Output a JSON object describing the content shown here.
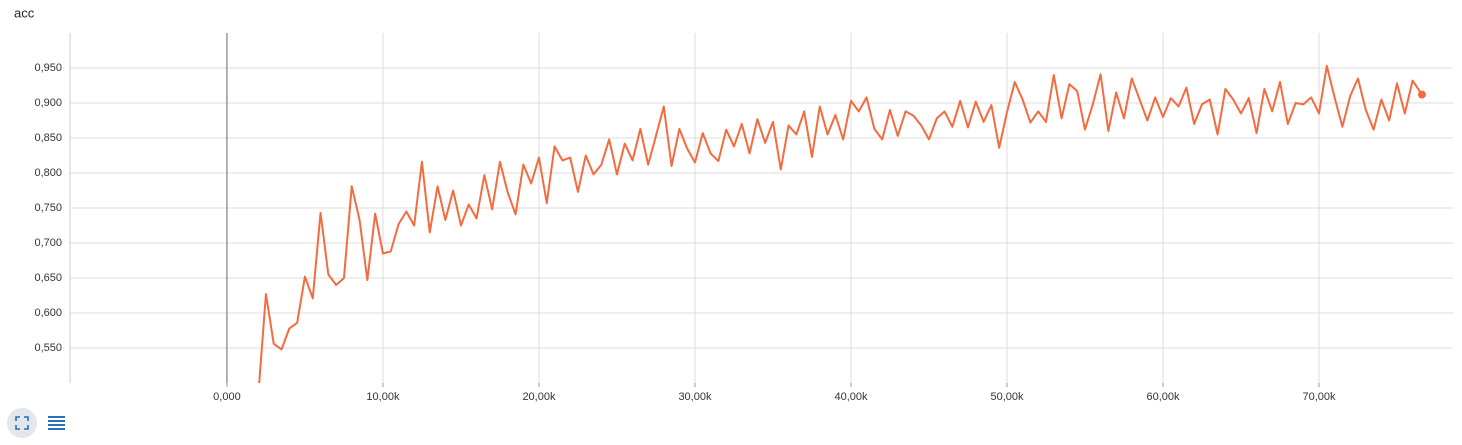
{
  "chart_data": {
    "type": "line",
    "title": "acc",
    "x": [
      2000,
      2500,
      3000,
      3500,
      4000,
      4500,
      5000,
      5500,
      6000,
      6500,
      7000,
      7500,
      8000,
      8500,
      9000,
      9500,
      10000,
      10500,
      11000,
      11500,
      12000,
      12500,
      13000,
      13500,
      14000,
      14500,
      15000,
      15500,
      16000,
      16500,
      17000,
      17500,
      18000,
      18500,
      19000,
      19500,
      20000,
      20500,
      21000,
      21500,
      22000,
      22500,
      23000,
      23500,
      24000,
      24500,
      25000,
      25500,
      26000,
      26500,
      27000,
      27500,
      28000,
      28500,
      29000,
      29500,
      30000,
      30500,
      31000,
      31500,
      32000,
      32500,
      33000,
      33500,
      34000,
      34500,
      35000,
      35500,
      36000,
      36500,
      37000,
      37500,
      38000,
      38500,
      39000,
      39500,
      40000,
      40500,
      41000,
      41500,
      42000,
      42500,
      43000,
      43500,
      44000,
      44500,
      45000,
      45500,
      46000,
      46500,
      47000,
      47500,
      48000,
      48500,
      49000,
      49500,
      50000,
      50500,
      51000,
      51500,
      52000,
      52500,
      53000,
      53500,
      54000,
      54500,
      55000,
      55500,
      56000,
      56500,
      57000,
      57500,
      58000,
      58500,
      59000,
      59500,
      60000,
      60500,
      61000,
      61500,
      62000,
      62500,
      63000,
      63500,
      64000,
      64500,
      65000,
      65500,
      66000,
      66500,
      67000,
      67500,
      68000,
      68500,
      69000,
      69500,
      70000,
      70500,
      71000,
      71500,
      72000,
      72500,
      73000,
      73500,
      74000,
      74500,
      75000,
      75500,
      76000,
      76600
    ],
    "values": [
      0.48,
      0.627,
      0.556,
      0.548,
      0.578,
      0.586,
      0.652,
      0.621,
      0.743,
      0.655,
      0.64,
      0.65,
      0.781,
      0.733,
      0.647,
      0.742,
      0.685,
      0.688,
      0.727,
      0.745,
      0.725,
      0.816,
      0.715,
      0.781,
      0.733,
      0.775,
      0.725,
      0.755,
      0.735,
      0.797,
      0.748,
      0.816,
      0.772,
      0.741,
      0.812,
      0.785,
      0.822,
      0.757,
      0.838,
      0.818,
      0.822,
      0.773,
      0.825,
      0.798,
      0.812,
      0.848,
      0.798,
      0.842,
      0.818,
      0.863,
      0.812,
      0.853,
      0.895,
      0.81,
      0.863,
      0.835,
      0.815,
      0.857,
      0.828,
      0.817,
      0.862,
      0.838,
      0.87,
      0.828,
      0.877,
      0.843,
      0.873,
      0.805,
      0.868,
      0.855,
      0.888,
      0.823,
      0.895,
      0.855,
      0.883,
      0.848,
      0.903,
      0.888,
      0.908,
      0.863,
      0.848,
      0.89,
      0.853,
      0.888,
      0.882,
      0.868,
      0.848,
      0.878,
      0.888,
      0.866,
      0.903,
      0.865,
      0.902,
      0.873,
      0.897,
      0.836,
      0.887,
      0.93,
      0.905,
      0.872,
      0.888,
      0.873,
      0.94,
      0.878,
      0.927,
      0.917,
      0.862,
      0.898,
      0.941,
      0.86,
      0.915,
      0.878,
      0.935,
      0.905,
      0.875,
      0.908,
      0.88,
      0.907,
      0.895,
      0.922,
      0.87,
      0.898,
      0.905,
      0.855,
      0.92,
      0.905,
      0.885,
      0.907,
      0.857,
      0.92,
      0.888,
      0.93,
      0.87,
      0.9,
      0.898,
      0.908,
      0.885,
      0.953,
      0.908,
      0.866,
      0.91,
      0.935,
      0.89,
      0.862,
      0.905,
      0.875,
      0.928,
      0.885,
      0.932,
      0.912
    ],
    "color": "#f36c3f",
    "xlim": [
      -10060,
      78590
    ],
    "xticks": [
      {
        "value": 0,
        "label": "0,000"
      },
      {
        "value": 10000,
        "label": "10,00k"
      },
      {
        "value": 20000,
        "label": "20,00k"
      },
      {
        "value": 30000,
        "label": "30,00k"
      },
      {
        "value": 40000,
        "label": "40,00k"
      },
      {
        "value": 50000,
        "label": "50,00k"
      },
      {
        "value": 60000,
        "label": "60,00k"
      },
      {
        "value": 70000,
        "label": "70,00k"
      }
    ],
    "ylim": [
      0.5,
      1.0
    ],
    "yticks": [
      {
        "value": 0.55,
        "label": "0,550"
      },
      {
        "value": 0.6,
        "label": "0,600"
      },
      {
        "value": 0.65,
        "label": "0,650"
      },
      {
        "value": 0.7,
        "label": "0,700"
      },
      {
        "value": 0.75,
        "label": "0,750"
      },
      {
        "value": 0.8,
        "label": "0,800"
      },
      {
        "value": 0.85,
        "label": "0,850"
      },
      {
        "value": 0.9,
        "label": "0,900"
      },
      {
        "value": 0.95,
        "label": "0,950"
      }
    ],
    "grid": true
  }
}
